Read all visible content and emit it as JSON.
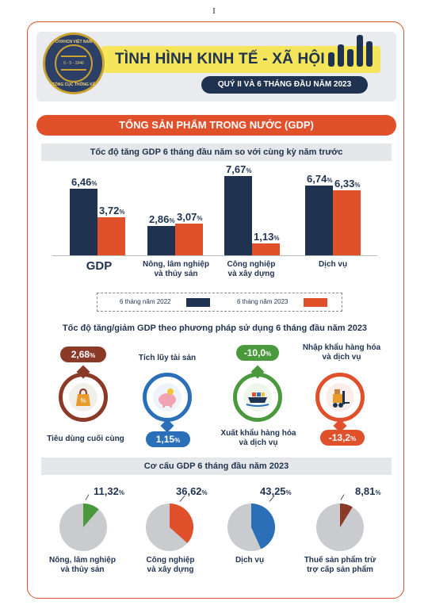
{
  "page_number": "I",
  "header": {
    "title": "TÌNH HÌNH KINH TẾ - XÃ HỘI",
    "subtitle": "QUÝ II VÀ 6 THÁNG ĐẦU NĂM 2023",
    "logo": {
      "top_text": "CHXHCN VIỆT NAM",
      "year_text": "6 - 5 - 1946",
      "bottom_text": "TỔNG CỤC THỐNG KÊ"
    }
  },
  "section_banner": "TỔNG SẢN PHẨM TRONG NƯỚC (GDP)",
  "growth_section": {
    "title": "Tốc độ tăng GDP 6 tháng đầu năm so với cùng kỳ năm trước",
    "legend": [
      "6 tháng năm 2022",
      "6 tháng năm 2023"
    ],
    "colors": {
      "2022": "#1f3350",
      "2023": "#e0502b"
    },
    "pct_symbol": "%",
    "groups": [
      {
        "label": "GDP",
        "v2022": "6,46",
        "v2023": "3,72"
      },
      {
        "label_line1": "Nông, lâm nghiệp",
        "label_line2": "và thủy sản",
        "v2022": "2,86",
        "v2023": "3,07"
      },
      {
        "label_line1": "Công nghiệp",
        "label_line2": "và xây dựng",
        "v2022": "7,67",
        "v2023": "1,13"
      },
      {
        "label": "Dịch vụ",
        "v2022": "6,74",
        "v2023": "6,33"
      }
    ]
  },
  "chart_data": {
    "type": "bar",
    "categories": [
      "GDP",
      "Nông, lâm nghiệp và thủy sản",
      "Công nghiệp và xây dựng",
      "Dịch vụ"
    ],
    "series": [
      {
        "name": "6 tháng năm 2022",
        "values": [
          6.46,
          2.86,
          7.67,
          6.74
        ]
      },
      {
        "name": "6 tháng năm 2023",
        "values": [
          3.72,
          3.07,
          1.13,
          6.33
        ]
      }
    ],
    "title": "Tốc độ tăng GDP 6 tháng đầu năm so với cùng kỳ năm trước",
    "ylim": [
      0,
      8
    ]
  },
  "usage_section": {
    "title": "Tốc độ tăng/giảm GDP theo phương pháp sử dụng 6 tháng đầu năm 2023",
    "items": [
      {
        "value": "2,68",
        "label": "Tiêu dùng cuối cùng",
        "color": "#8a3a26",
        "icon": "shopping-bag-icon"
      },
      {
        "value": "1,15",
        "label": "Tích lũy tài sản",
        "color": "#2b6fb8",
        "icon": "piggy-bank-icon"
      },
      {
        "value": "-10,0",
        "label_line1": "Xuất khẩu hàng hóa",
        "label_line2": "và dịch vụ",
        "color": "#4a9a3d",
        "icon": "cargo-ship-icon"
      },
      {
        "value": "-13,2",
        "label_line1": "Nhập khẩu hàng hóa",
        "label_line2": "và dịch vụ",
        "color": "#e0502b",
        "icon": "forklift-icon"
      }
    ]
  },
  "structure_section": {
    "title": "Cơ cấu GDP 6 tháng đầu năm 2023",
    "items": [
      {
        "value": "11,32",
        "share": 11.32,
        "label_line1": "Nông, lâm nghiệp",
        "label_line2": "và thủy sản",
        "color": "#4a9a3d"
      },
      {
        "value": "36,62",
        "share": 36.62,
        "label_line1": "Công nghiệp",
        "label_line2": "và xây dựng",
        "color": "#e0502b"
      },
      {
        "value": "43,25",
        "share": 43.25,
        "label_line1": "Dịch vụ",
        "label_line2": "",
        "color": "#2b6fb8"
      },
      {
        "value": "8,81",
        "share": 8.81,
        "label_line1": "Thuế sản phẩm trừ",
        "label_line2": "trợ cấp sản phẩm",
        "color": "#8a3a26"
      }
    ],
    "rest_color": "#c9cbcf"
  }
}
